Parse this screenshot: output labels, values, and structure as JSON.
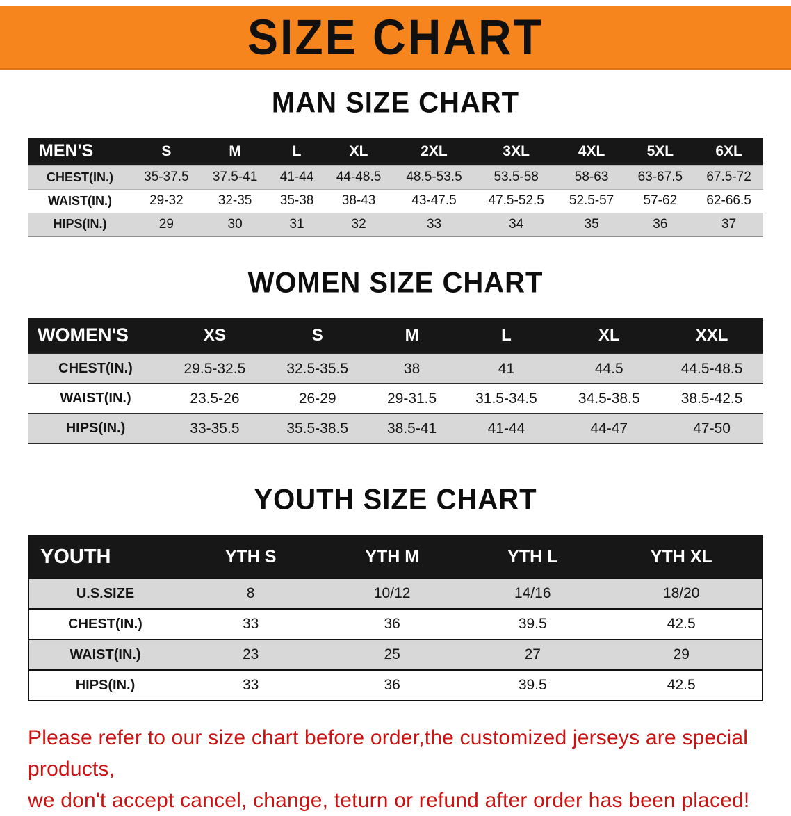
{
  "banner": {
    "title": "SIZE CHART",
    "bg_color": "#f6851d"
  },
  "men": {
    "heading": "MAN SIZE CHART",
    "label": "MEN'S",
    "sizes": [
      "S",
      "M",
      "L",
      "XL",
      "2XL",
      "3XL",
      "4XL",
      "5XL",
      "6XL"
    ],
    "chest": {
      "label": "CHEST(IN.)",
      "values": [
        "35-37.5",
        "37.5-41",
        "41-44",
        "44-48.5",
        "48.5-53.5",
        "53.5-58",
        "58-63",
        "63-67.5",
        "67.5-72"
      ]
    },
    "waist": {
      "label": "WAIST(IN.)",
      "values": [
        "29-32",
        "32-35",
        "35-38",
        "38-43",
        "43-47.5",
        "47.5-52.5",
        "52.5-57",
        "57-62",
        "62-66.5"
      ]
    },
    "hips": {
      "label": "HIPS(IN.)",
      "values": [
        "29",
        "30",
        "31",
        "32",
        "33",
        "34",
        "35",
        "36",
        "37"
      ]
    }
  },
  "women": {
    "heading": "WOMEN SIZE CHART",
    "label": "WOMEN'S",
    "sizes": [
      "XS",
      "S",
      "M",
      "L",
      "XL",
      "XXL"
    ],
    "chest": {
      "label": "CHEST(IN.)",
      "values": [
        "29.5-32.5",
        "32.5-35.5",
        "38",
        "41",
        "44.5",
        "44.5-48.5"
      ]
    },
    "waist": {
      "label": "WAIST(IN.)",
      "values": [
        "23.5-26",
        "26-29",
        "29-31.5",
        "31.5-34.5",
        "34.5-38.5",
        "38.5-42.5"
      ]
    },
    "hips": {
      "label": "HIPS(IN.)",
      "values": [
        "33-35.5",
        "35.5-38.5",
        "38.5-41",
        "41-44",
        "44-47",
        "47-50"
      ]
    }
  },
  "youth": {
    "heading": "YOUTH SIZE CHART",
    "label": "YOUTH",
    "sizes": [
      "YTH S",
      "YTH M",
      "YTH L",
      "YTH XL"
    ],
    "ussize": {
      "label": "U.S.SIZE",
      "values": [
        "8",
        "10/12",
        "14/16",
        "18/20"
      ]
    },
    "chest": {
      "label": "CHEST(IN.)",
      "values": [
        "33",
        "36",
        "39.5",
        "42.5"
      ]
    },
    "waist": {
      "label": "WAIST(IN.)",
      "values": [
        "23",
        "25",
        "27",
        "29"
      ]
    },
    "hips": {
      "label": "HIPS(IN.)",
      "values": [
        "33",
        "36",
        "39.5",
        "42.5"
      ]
    }
  },
  "footer": {
    "line1": "Please refer to our size chart before order,the customized jerseys are special products,",
    "line2": "we don't accept cancel, change, teturn or refund after order has been placed!",
    "text_color": "#cc1111"
  }
}
